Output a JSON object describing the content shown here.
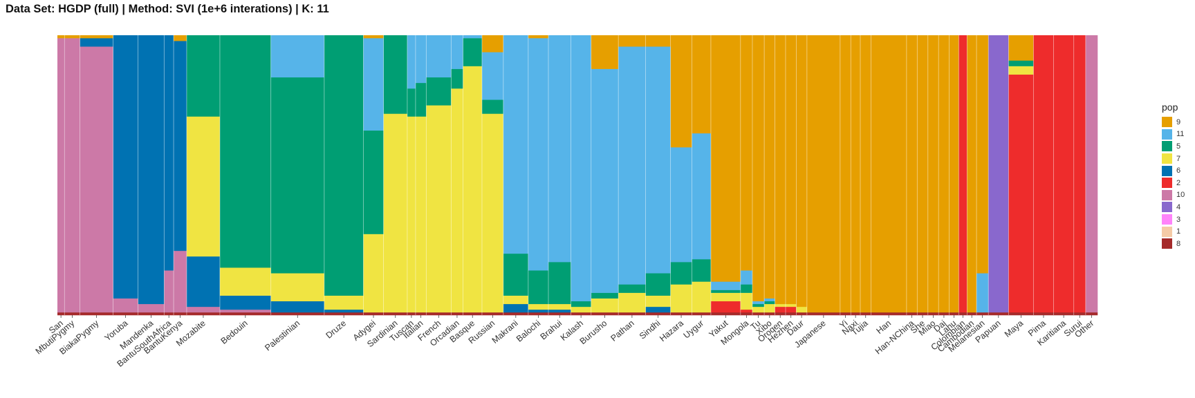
{
  "chart_data": {
    "type": "bar",
    "stacked": true,
    "normalized": true,
    "title": "Data Set: HGDP (full) | Method: SVI (1e+6 interations) | K: 11",
    "xlabel": "",
    "ylabel": "",
    "ylim": [
      0,
      1
    ],
    "grid": false,
    "legend_title": "pop",
    "legend_position": "right",
    "colors": {
      "9": "#E69F00",
      "11": "#56B4E9",
      "5": "#009E73",
      "7": "#F0E442",
      "6": "#0072B2",
      "2": "#EE2C2C",
      "10": "#CC79A7",
      "4": "#8968CD",
      "3": "#FF83FA",
      "1": "#F5CBA7",
      "8": "#A52A2A"
    },
    "legend": [
      {
        "label": "9",
        "color": "#E69F00"
      },
      {
        "label": "11",
        "color": "#56B4E9"
      },
      {
        "label": "5",
        "color": "#009E73"
      },
      {
        "label": "7",
        "color": "#F0E442"
      },
      {
        "label": "6",
        "color": "#0072B2"
      },
      {
        "label": "2",
        "color": "#EE2C2C"
      },
      {
        "label": "10",
        "color": "#CC79A7"
      },
      {
        "label": "4",
        "color": "#8968CD"
      },
      {
        "label": "3",
        "color": "#FF83FA"
      },
      {
        "label": "1",
        "color": "#F5CBA7"
      },
      {
        "label": "8",
        "color": "#A52A2A"
      }
    ],
    "populations": [
      {
        "name": "San",
        "width": 6,
        "components": {
          "8": 0.01,
          "10": 0.98,
          "9": 0.01
        }
      },
      {
        "name": "MbutiPygmy",
        "width": 13,
        "components": {
          "8": 0.01,
          "10": 0.98,
          "9": 0.01
        }
      },
      {
        "name": "BiakaPygmy",
        "width": 28,
        "components": {
          "8": 0.01,
          "10": 0.95,
          "6": 0.03,
          "9": 0.01
        }
      },
      {
        "name": "Yoruba",
        "width": 21,
        "components": {
          "8": 0.01,
          "10": 0.05,
          "6": 0.94
        }
      },
      {
        "name": "Mandenka",
        "width": 22,
        "components": {
          "8": 0.01,
          "10": 0.03,
          "6": 0.96
        }
      },
      {
        "name": "BantuSouthAfrica",
        "width": 8,
        "components": {
          "8": 0.01,
          "10": 0.15,
          "6": 0.84
        }
      },
      {
        "name": "BantuKenya",
        "width": 11,
        "components": {
          "8": 0.01,
          "10": 0.22,
          "6": 0.75,
          "9": 0.02
        }
      },
      {
        "name": "Mozabite",
        "width": 28,
        "components": {
          "8": 0.01,
          "10": 0.02,
          "6": 0.18,
          "7": 0.5,
          "5": 0.29
        }
      },
      {
        "name": "Bedouin",
        "width": 43,
        "components": {
          "8": 0.01,
          "10": 0.01,
          "6": 0.05,
          "7": 0.1,
          "5": 0.83
        }
      },
      {
        "name": "Palestinian",
        "width": 45,
        "components": {
          "8": 0.01,
          "6": 0.04,
          "7": 0.1,
          "5": 0.7,
          "11": 0.15
        }
      },
      {
        "name": "Druze",
        "width": 33,
        "components": {
          "8": 0.01,
          "6": 0.01,
          "7": 0.05,
          "5": 0.93
        }
      },
      {
        "name": "Adygei",
        "width": 17,
        "components": {
          "8": 0.01,
          "7": 0.28,
          "5": 0.37,
          "11": 0.33,
          "9": 0.01
        }
      },
      {
        "name": "Sardinian",
        "width": 20,
        "components": {
          "8": 0.01,
          "7": 0.71,
          "5": 0.28
        }
      },
      {
        "name": "Tuscan",
        "width": 7,
        "components": {
          "8": 0.01,
          "7": 0.7,
          "5": 0.1,
          "11": 0.19
        }
      },
      {
        "name": "Italian",
        "width": 9,
        "components": {
          "8": 0.01,
          "7": 0.7,
          "5": 0.12,
          "11": 0.17
        }
      },
      {
        "name": "French",
        "width": 21,
        "components": {
          "8": 0.01,
          "7": 0.74,
          "5": 0.1,
          "11": 0.15
        }
      },
      {
        "name": "Orcadian",
        "width": 10,
        "components": {
          "8": 0.01,
          "7": 0.8,
          "5": 0.07,
          "11": 0.12
        }
      },
      {
        "name": "Basque",
        "width": 16,
        "components": {
          "8": 0.01,
          "7": 0.88,
          "5": 0.1,
          "11": 0.01
        }
      },
      {
        "name": "Russian",
        "width": 18,
        "components": {
          "8": 0.01,
          "7": 0.71,
          "5": 0.05,
          "11": 0.17,
          "9": 0.06
        }
      },
      {
        "name": "Makrani",
        "width": 21,
        "components": {
          "8": 0.01,
          "6": 0.03,
          "7": 0.03,
          "5": 0.15,
          "11": 0.78
        }
      },
      {
        "name": "Balochi",
        "width": 17,
        "components": {
          "8": 0.01,
          "6": 0.01,
          "7": 0.02,
          "5": 0.12,
          "11": 0.83,
          "9": 0.01
        }
      },
      {
        "name": "Brahui",
        "width": 19,
        "components": {
          "8": 0.01,
          "6": 0.01,
          "7": 0.02,
          "5": 0.15,
          "11": 0.81
        }
      },
      {
        "name": "Kalash",
        "width": 17,
        "components": {
          "8": 0.01,
          "7": 0.02,
          "5": 0.02,
          "11": 0.95
        }
      },
      {
        "name": "Burusho",
        "width": 23,
        "components": {
          "8": 0.01,
          "7": 0.05,
          "5": 0.02,
          "11": 0.8,
          "9": 0.12
        }
      },
      {
        "name": "Pathan",
        "width": 23,
        "components": {
          "8": 0.01,
          "7": 0.07,
          "5": 0.03,
          "11": 0.85,
          "9": 0.04
        }
      },
      {
        "name": "Sindhi",
        "width": 21,
        "components": {
          "8": 0.01,
          "6": 0.02,
          "7": 0.04,
          "5": 0.08,
          "11": 0.81,
          "9": 0.04
        }
      },
      {
        "name": "Hazara",
        "width": 18,
        "components": {
          "8": 0.01,
          "7": 0.1,
          "5": 0.08,
          "11": 0.41,
          "9": 0.4
        }
      },
      {
        "name": "Uygur",
        "width": 16,
        "components": {
          "8": 0.01,
          "7": 0.11,
          "5": 0.08,
          "11": 0.45,
          "9": 0.35
        }
      },
      {
        "name": "Yakut",
        "width": 25,
        "components": {
          "8": 0.01,
          "2": 0.04,
          "7": 0.03,
          "5": 0.01,
          "11": 0.03,
          "9": 0.88
        }
      },
      {
        "name": "Mongola",
        "width": 10,
        "components": {
          "8": 0.01,
          "2": 0.01,
          "7": 0.06,
          "5": 0.03,
          "11": 0.05,
          "9": 0.84
        }
      },
      {
        "name": "Tu",
        "width": 10,
        "components": {
          "8": 0.01,
          "7": 0.02,
          "5": 0.01,
          "11": 0.01,
          "9": 0.95
        }
      },
      {
        "name": "Xibo",
        "width": 9,
        "components": {
          "8": 0.01,
          "7": 0.03,
          "5": 0.01,
          "11": 0.01,
          "9": 0.94
        }
      },
      {
        "name": "Oroqen",
        "width": 9,
        "components": {
          "8": 0.01,
          "2": 0.02,
          "7": 0.01,
          "9": 0.96
        }
      },
      {
        "name": "Hezhen",
        "width": 9,
        "components": {
          "8": 0.01,
          "2": 0.02,
          "7": 0.01,
          "9": 0.96
        }
      },
      {
        "name": "Daur",
        "width": 9,
        "components": {
          "8": 0.01,
          "7": 0.02,
          "9": 0.97
        }
      },
      {
        "name": "Japanese",
        "width": 28,
        "components": {
          "8": 0.01,
          "9": 0.99
        }
      },
      {
        "name": "Yi",
        "width": 9,
        "components": {
          "8": 0.01,
          "9": 0.99
        }
      },
      {
        "name": "Naxi",
        "width": 8,
        "components": {
          "8": 0.01,
          "9": 0.99
        }
      },
      {
        "name": "Tujia",
        "width": 9,
        "components": {
          "8": 0.01,
          "9": 0.99
        }
      },
      {
        "name": "Han",
        "width": 30,
        "components": {
          "8": 0.01,
          "9": 0.99
        }
      },
      {
        "name": "Han-NChina",
        "width": 9,
        "components": {
          "8": 0.01,
          "9": 0.99
        }
      },
      {
        "name": "She",
        "width": 9,
        "components": {
          "8": 0.01,
          "9": 0.99
        }
      },
      {
        "name": "Miao",
        "width": 9,
        "components": {
          "8": 0.01,
          "9": 0.99
        }
      },
      {
        "name": "Dai",
        "width": 9,
        "components": {
          "8": 0.01,
          "9": 0.99
        }
      },
      {
        "name": "Lahu",
        "width": 8,
        "components": {
          "8": 0.01,
          "9": 0.99
        }
      },
      {
        "name": "Colombian",
        "width": 7,
        "components": {
          "8": 0.01,
          "2": 0.99
        }
      },
      {
        "name": "Cambodian",
        "width": 8,
        "components": {
          "8": 0.01,
          "9": 0.99
        }
      },
      {
        "name": "Melanesian",
        "width": 10,
        "components": {
          "8": 0.01,
          "11": 0.14,
          "9": 0.85
        }
      },
      {
        "name": "Papuan",
        "width": 17,
        "components": {
          "8": 0.01,
          "4": 0.99
        }
      },
      {
        "name": "Maya",
        "width": 21,
        "components": {
          "8": 0.01,
          "2": 0.85,
          "7": 0.03,
          "5": 0.02,
          "9": 0.09
        }
      },
      {
        "name": "Pima",
        "width": 17,
        "components": {
          "8": 0.01,
          "2": 0.99
        }
      },
      {
        "name": "Karitiana",
        "width": 17,
        "components": {
          "8": 0.01,
          "2": 0.99
        }
      },
      {
        "name": "Surui",
        "width": 10,
        "components": {
          "8": 0.01,
          "2": 0.99
        }
      },
      {
        "name": "Other",
        "width": 10,
        "components": {
          "8": 0.01,
          "10": 0.99
        }
      }
    ],
    "stack_order": [
      "8",
      "1",
      "3",
      "4",
      "10",
      "2",
      "6",
      "7",
      "5",
      "11",
      "9"
    ]
  }
}
